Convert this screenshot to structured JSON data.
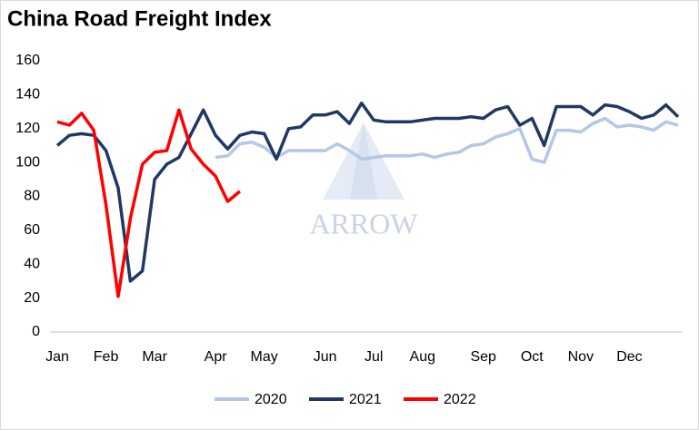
{
  "chart_data": {
    "type": "line",
    "title": "China Road Freight Index",
    "watermark": "ARROW",
    "categories": [
      "Jan",
      null,
      null,
      null,
      "Feb",
      null,
      null,
      null,
      "Mar",
      null,
      null,
      null,
      null,
      "Apr",
      null,
      null,
      null,
      "May",
      null,
      null,
      null,
      null,
      "Jun",
      null,
      null,
      null,
      "Jul",
      null,
      null,
      null,
      "Aug",
      null,
      null,
      null,
      null,
      "Sep",
      null,
      null,
      null,
      "Oct",
      null,
      null,
      null,
      "Nov",
      null,
      null,
      null,
      "Dec",
      null,
      null,
      null,
      null
    ],
    "series": [
      {
        "name": "2020",
        "color": "#b4c7e7",
        "values": [
          null,
          null,
          null,
          null,
          null,
          null,
          null,
          null,
          null,
          null,
          null,
          null,
          null,
          103,
          104,
          111,
          112,
          109,
          103,
          107,
          107,
          107,
          107,
          111,
          107,
          102,
          103,
          104,
          104,
          104,
          105,
          103,
          105,
          106,
          110,
          111,
          115,
          117,
          120,
          102,
          100,
          119,
          119,
          118,
          123,
          126,
          121,
          122,
          121,
          119,
          124,
          122
        ]
      },
      {
        "name": "2021",
        "color": "#203864",
        "values": [
          110,
          116,
          117,
          116,
          107,
          85,
          30,
          36,
          90,
          99,
          103,
          117,
          131,
          116,
          108,
          116,
          118,
          117,
          102,
          120,
          121,
          128,
          128,
          130,
          123,
          135,
          125,
          124,
          124,
          124,
          125,
          126,
          126,
          126,
          127,
          126,
          131,
          133,
          122,
          126,
          110,
          133,
          133,
          133,
          128,
          134,
          133,
          130,
          126,
          128,
          134,
          127
        ]
      },
      {
        "name": "2022",
        "color": "#ff0000",
        "values": [
          124,
          122,
          129,
          119,
          75,
          21,
          67,
          99,
          106,
          107,
          131,
          108,
          99,
          92,
          77,
          83,
          null,
          null,
          null,
          null,
          null,
          null,
          null,
          null,
          null,
          null,
          null,
          null,
          null,
          null,
          null,
          null,
          null,
          null,
          null,
          null,
          null,
          null,
          null,
          null,
          null,
          null,
          null,
          null,
          null,
          null,
          null,
          null,
          null,
          null,
          null,
          null
        ]
      }
    ],
    "ylim": [
      0,
      160
    ],
    "yticks": [
      0,
      20,
      40,
      60,
      80,
      100,
      120,
      140,
      160
    ],
    "grid": false,
    "legend": "bottom"
  }
}
